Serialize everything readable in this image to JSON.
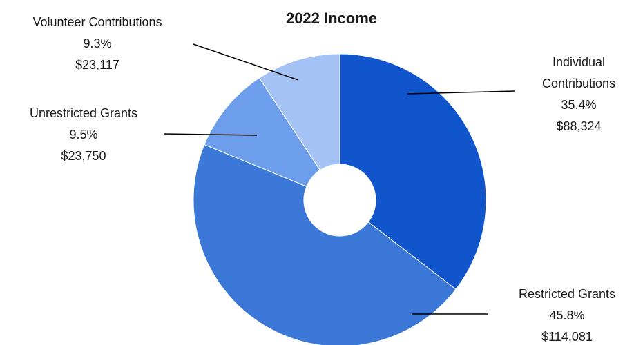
{
  "chart_data": {
    "type": "pie",
    "variant": "donut",
    "title": "2022 Income",
    "slices": [
      {
        "label": "Individual Contributions",
        "label_lines": [
          "Individual",
          "Contributions"
        ],
        "percent": "35.4%",
        "amount": "$88,324",
        "value": 88324,
        "color": "#1155cc"
      },
      {
        "label": "Restricted Grants",
        "label_lines": [
          "Restricted Grants"
        ],
        "percent": "45.8%",
        "amount": "$114,081",
        "value": 114081,
        "color": "#3c78d8"
      },
      {
        "label": "Unrestricted Grants",
        "label_lines": [
          "Unrestricted Grants"
        ],
        "percent": "9.5%",
        "amount": "$23,750",
        "value": 23750,
        "color": "#6d9eeb"
      },
      {
        "label": "Volunteer Contributions",
        "label_lines": [
          "Volunteer Contributions"
        ],
        "percent": "9.3%",
        "amount": "$23,117",
        "value": 23117,
        "color": "#a4c2f4"
      }
    ],
    "legend": "none",
    "labels": "outside with leader lines"
  }
}
